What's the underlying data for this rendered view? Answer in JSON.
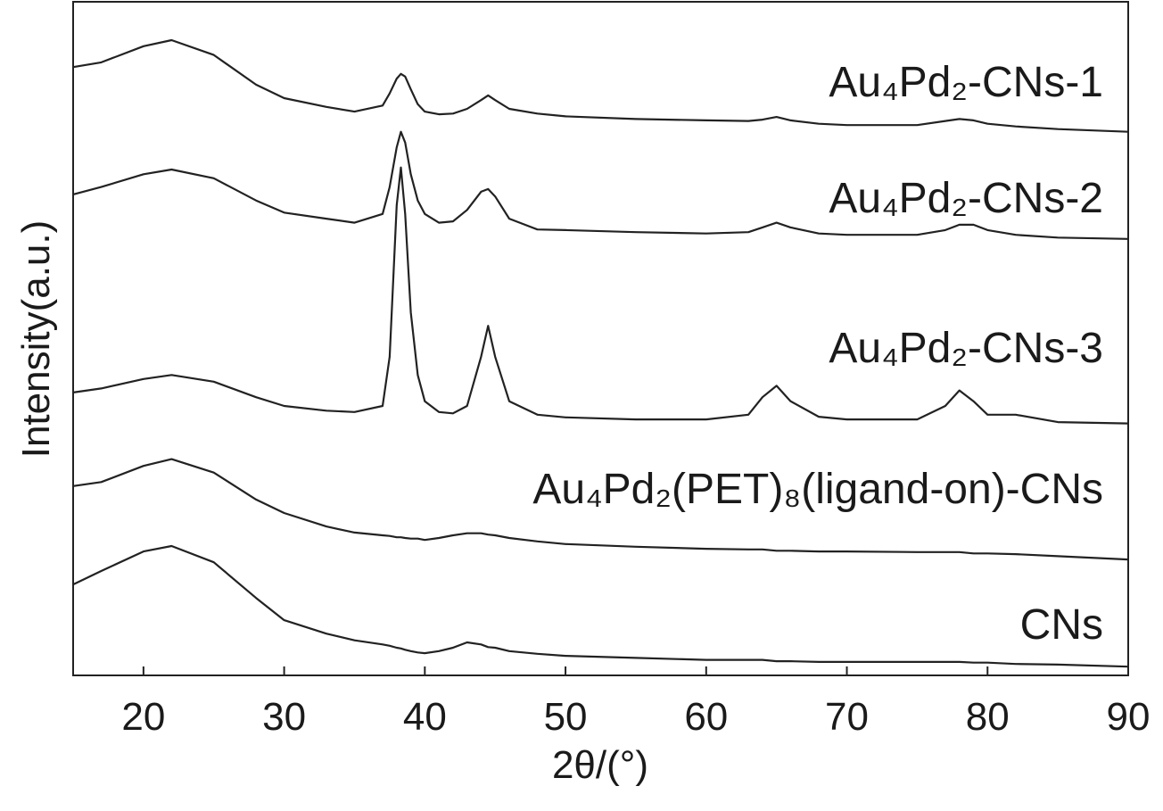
{
  "chart_data": {
    "type": "line",
    "x_label": "2θ/(°)",
    "y_label": "Intensity(a.u.)",
    "xlim": [
      15,
      90
    ],
    "xticks": [
      20,
      30,
      40,
      50,
      60,
      70,
      80,
      90
    ],
    "ylim": [
      0,
      100
    ],
    "x": [
      15,
      17,
      20,
      22,
      25,
      28,
      30,
      33,
      35,
      37,
      37.5,
      38,
      38.3,
      38.6,
      39,
      39.5,
      40,
      41,
      42,
      43,
      44,
      44.5,
      45,
      46,
      48,
      50,
      55,
      60,
      63,
      64,
      65,
      66,
      68,
      70,
      75,
      77,
      78,
      79,
      80,
      82,
      85,
      90
    ],
    "series": [
      {
        "name": "Au₄Pd₂-CNs-1",
        "color": "#222222",
        "values": [
          90.3,
          91.0,
          93.4,
          94.3,
          92.1,
          87.7,
          85.7,
          84.4,
          83.7,
          84.6,
          86.4,
          88.6,
          89.3,
          88.9,
          87.0,
          84.8,
          83.7,
          83.3,
          83.4,
          84.1,
          85.4,
          86.1,
          85.4,
          84.1,
          83.4,
          83.0,
          82.6,
          82.4,
          82.3,
          82.5,
          82.9,
          82.4,
          81.9,
          81.7,
          81.7,
          82.3,
          82.6,
          82.4,
          81.9,
          81.5,
          81.1,
          80.7
        ]
      },
      {
        "name": "Au₄Pd₂-CNs-2",
        "color": "#222222",
        "values": [
          71.4,
          72.5,
          74.4,
          75.1,
          73.8,
          70.5,
          68.7,
          67.8,
          67.2,
          68.5,
          72.5,
          78.4,
          80.7,
          79.1,
          74.4,
          70.5,
          68.5,
          67.2,
          67.4,
          69.1,
          71.8,
          72.2,
          71.1,
          67.8,
          66.2,
          66.1,
          65.8,
          65.6,
          65.8,
          66.5,
          67.2,
          66.5,
          65.6,
          65.4,
          65.4,
          66.1,
          66.9,
          66.9,
          66.1,
          65.4,
          65.0,
          64.8
        ]
      },
      {
        "name": "Au₄Pd₂-CNs-3",
        "color": "#222222",
        "values": [
          42.0,
          42.6,
          44.0,
          44.6,
          43.6,
          41.3,
          40.0,
          39.3,
          39.1,
          40.0,
          47.3,
          69.8,
          75.4,
          68.5,
          53.9,
          44.6,
          40.7,
          39.1,
          38.9,
          40.0,
          47.3,
          51.9,
          47.3,
          40.7,
          38.7,
          38.3,
          38.0,
          38.0,
          38.7,
          41.3,
          43.0,
          40.7,
          38.4,
          38.0,
          38.0,
          40.0,
          42.3,
          40.7,
          38.7,
          38.7,
          37.6,
          37.4
        ]
      },
      {
        "name": "Au₄Pd₂(PET)₈(ligand-on)-CNs",
        "color": "#222222",
        "values": [
          28.1,
          28.7,
          31.1,
          32.1,
          30.1,
          26.1,
          24.1,
          22.1,
          21.2,
          20.8,
          20.7,
          20.5,
          20.5,
          20.4,
          20.3,
          20.3,
          20.1,
          20.4,
          20.8,
          21.1,
          21.1,
          20.9,
          20.8,
          20.4,
          19.9,
          19.5,
          19.1,
          18.8,
          18.7,
          18.7,
          18.5,
          18.5,
          18.4,
          18.4,
          18.3,
          18.3,
          18.3,
          18.1,
          18.1,
          18.0,
          17.7,
          17.2
        ]
      },
      {
        "name": "CNs",
        "color": "#222222",
        "values": [
          13.5,
          15.5,
          18.4,
          19.2,
          16.8,
          11.5,
          8.2,
          6.2,
          5.2,
          4.6,
          4.4,
          4.1,
          4.0,
          3.8,
          3.6,
          3.4,
          3.3,
          3.6,
          4.1,
          4.9,
          4.6,
          4.2,
          4.1,
          3.6,
          3.2,
          2.9,
          2.6,
          2.3,
          2.3,
          2.3,
          2.1,
          2.1,
          2.0,
          2.0,
          2.0,
          2.0,
          2.0,
          1.9,
          1.9,
          1.7,
          1.6,
          1.3
        ]
      }
    ]
  }
}
